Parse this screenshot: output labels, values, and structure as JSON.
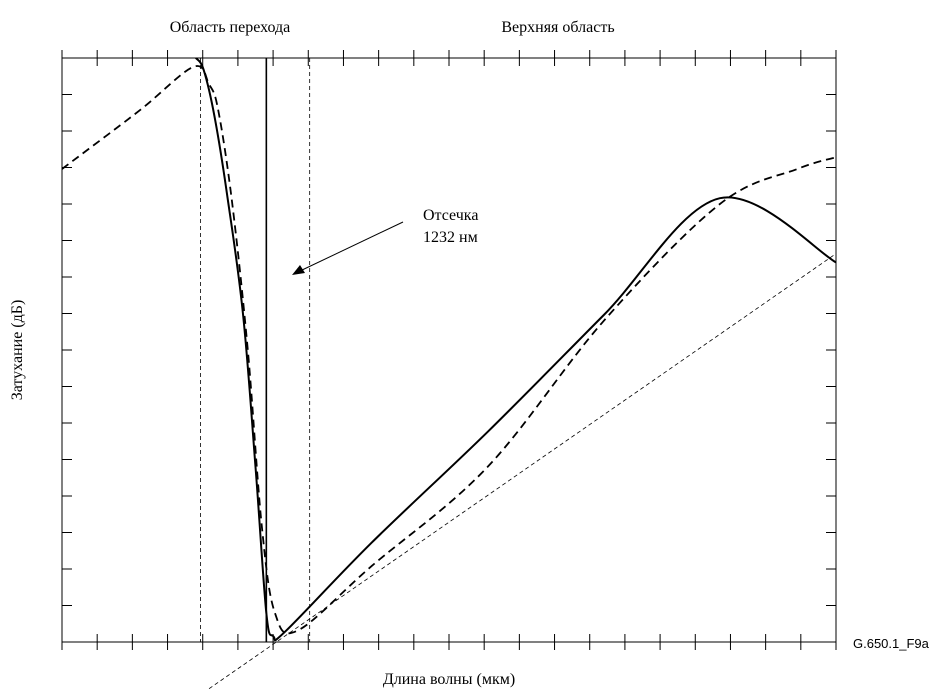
{
  "chart_data": {
    "type": "line",
    "title": "",
    "xlabel": "Длина волны (мкм)",
    "ylabel": "Затухание (дБ)",
    "top_labels": [
      "Область перехода",
      "Верхняя область"
    ],
    "annotation": {
      "lines": [
        "Отсечка",
        "1232 нм"
      ]
    },
    "cutoff_value_nm": 1232,
    "figure_id": "G.650.1_F9a",
    "grid": false,
    "x_ticks_count": 23,
    "y_ticks_count": 17,
    "series": [
      {
        "style": "solid",
        "x": [
          0.173,
          0.183,
          0.197,
          0.214,
          0.234,
          0.25,
          0.264,
          0.273,
          0.29,
          0.4,
          0.55,
          0.7,
          0.85,
          1.0
        ],
        "y": [
          1.0,
          0.98,
          0.9,
          0.76,
          0.56,
          0.3,
          0.05,
          0.01,
          0.02,
          0.17,
          0.36,
          0.56,
          0.76,
          0.65
        ]
      },
      {
        "style": "dashed",
        "x": [
          0.0,
          0.1,
          0.17,
          0.19,
          0.202,
          0.22,
          0.24,
          0.258,
          0.275,
          0.305,
          0.4,
          0.55,
          0.7,
          0.85,
          0.95,
          1.0
        ],
        "y": [
          0.81,
          0.91,
          0.985,
          0.955,
          0.91,
          0.75,
          0.5,
          0.2,
          0.05,
          0.02,
          0.13,
          0.3,
          0.55,
          0.75,
          0.81,
          0.83
        ]
      },
      {
        "style": "reference",
        "x": [
          0.19,
          1.0
        ],
        "y": [
          -0.08,
          0.665
        ]
      }
    ],
    "vertical_markers": [
      {
        "style": "dashed",
        "x": 0.179
      },
      {
        "style": "solid",
        "x": 0.264
      },
      {
        "style": "dashed",
        "x": 0.32
      }
    ]
  }
}
